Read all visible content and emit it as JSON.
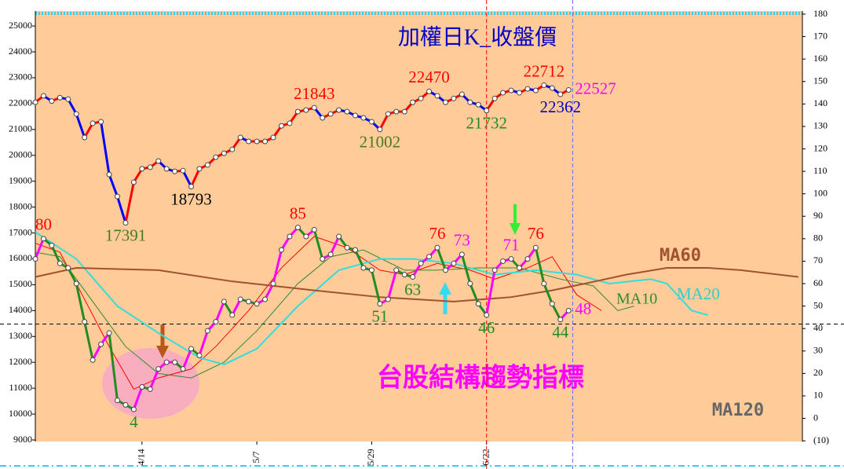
{
  "chart_data": {
    "type": "line",
    "title": "加權日K_收盤價",
    "indicator_title": "台股結構趨勢指標",
    "annotations": [
      {
        "text": "MA120",
        "color": "#666666"
      }
    ],
    "xlim": [
      0,
      93.5
    ],
    "xticks": [
      {
        "value": 13,
        "label": "4/14"
      },
      {
        "value": 27,
        "label": "5/7"
      },
      {
        "value": 41,
        "label": "5/29"
      },
      {
        "value": 55,
        "label": "6/22"
      }
    ],
    "ylim": [
      8940,
      25580
    ],
    "yticks": [
      9000,
      10000,
      11000,
      12000,
      13000,
      14000,
      15000,
      16000,
      17000,
      18000,
      19000,
      20000,
      21000,
      22000,
      23000,
      24000,
      25000
    ],
    "y2lim": [
      -10.3,
      181.4
    ],
    "y2ticks": [
      {
        "value": -10,
        "label": "(10)"
      },
      0,
      10,
      20,
      30,
      40,
      50,
      60,
      70,
      80,
      90,
      100,
      110,
      120,
      130,
      140,
      150,
      160,
      170,
      180
    ],
    "reference_line_y2": 42,
    "vlines": [
      {
        "x": 55,
        "color": "#ff0000"
      },
      {
        "x": 65.5,
        "color": "#6666ff"
      }
    ],
    "background": "#ffcc99",
    "series": [
      {
        "axis": "y",
        "up_color": "#ff0000",
        "down_color": "#0000ff",
        "values": [
          22050,
          22300,
          22100,
          22230,
          22170,
          21600,
          20690,
          21240,
          21300,
          19260,
          18410,
          17391,
          18960,
          19480,
          19540,
          19780,
          19480,
          19380,
          19410,
          18793,
          19480,
          19630,
          19930,
          20080,
          20230,
          20690,
          20540,
          20540,
          20540,
          20690,
          21140,
          21240,
          21690,
          21750,
          21843,
          21450,
          21600,
          21750,
          21690,
          21540,
          21450,
          21300,
          21002,
          21600,
          21690,
          21690,
          22050,
          22200,
          22470,
          22300,
          22050,
          22200,
          22360,
          22050,
          21960,
          21732,
          22200,
          22420,
          22510,
          22420,
          22570,
          22510,
          22712,
          22600,
          22362,
          22527
        ],
        "data_labels": [
          {
            "index": 11,
            "color": "#4a7a20",
            "position": "below"
          },
          {
            "index": 19,
            "color": "#000000",
            "position": "below"
          },
          {
            "index": 34,
            "color": "#ff0000",
            "position": "above"
          },
          {
            "index": 42,
            "color": "#4a7a20",
            "position": "below"
          },
          {
            "index": 48,
            "color": "#ff0000",
            "position": "above"
          },
          {
            "index": 55,
            "color": "#228b22",
            "position": "below"
          },
          {
            "index": 62,
            "color": "#ff0000",
            "position": "above"
          },
          {
            "index": 64,
            "color": "#0000cc",
            "position": "below"
          },
          {
            "index": 65,
            "color": "#ff00ff",
            "position": "right"
          }
        ]
      },
      {
        "axis": "y2",
        "up_color": "#ff00ff",
        "down_color": "#228b22",
        "values": [
          71,
          80,
          77,
          69,
          67,
          60,
          43,
          26,
          33,
          38,
          8,
          6,
          4,
          14,
          13,
          22,
          25,
          25,
          22,
          31,
          28,
          39,
          43,
          52,
          46,
          53,
          52,
          51,
          53,
          60,
          75,
          81,
          85,
          81,
          84,
          71,
          73,
          81,
          76,
          75,
          67,
          66,
          51,
          53,
          66,
          64,
          63,
          69,
          72,
          76,
          66,
          69,
          73,
          60,
          51,
          46,
          66,
          70,
          71,
          67,
          71,
          76,
          60,
          51,
          44,
          48
        ],
        "data_labels": [
          {
            "index": 1,
            "color": "#ff0000",
            "position": "above"
          },
          {
            "index": 12,
            "color": "#228b22",
            "position": "below"
          },
          {
            "index": 32,
            "color": "#ff0000",
            "position": "above"
          },
          {
            "index": 42,
            "color": "#228b22",
            "position": "below"
          },
          {
            "index": 46,
            "color": "#228b22",
            "position": "below"
          },
          {
            "index": 49,
            "color": "#ff0000",
            "position": "above"
          },
          {
            "index": 52,
            "color": "#ff00ff",
            "position": "above"
          },
          {
            "index": 55,
            "color": "#228b22",
            "position": "below"
          },
          {
            "index": 58,
            "color": "#ff00ff",
            "position": "above"
          },
          {
            "index": 61,
            "color": "#ff0000",
            "position": "above"
          },
          {
            "index": 64,
            "color": "#228b22",
            "position": "below"
          },
          {
            "index": 65,
            "color": "#ff00ff",
            "position": "right"
          }
        ]
      },
      {
        "axis": "y2",
        "color": "#ff0000",
        "width": 1,
        "x": [
          0,
          3,
          6,
          9,
          12,
          15,
          19,
          22,
          26,
          30,
          34,
          38,
          42,
          45,
          49,
          53,
          56,
          60,
          63,
          66,
          69
        ],
        "values": [
          78,
          74,
          53,
          32,
          13,
          18,
          22,
          32,
          48,
          67,
          81,
          76,
          66,
          64,
          69,
          66,
          62,
          67,
          72,
          55,
          48
        ]
      },
      {
        "name": "MA10",
        "axis": "y2",
        "color": "#2e8b2e",
        "width": 1,
        "x": [
          0,
          3,
          7,
          11,
          15,
          19,
          23,
          27,
          32,
          36,
          40,
          45,
          49,
          54,
          59,
          64,
          68,
          71,
          73
        ],
        "values": [
          74,
          72,
          52,
          32,
          20,
          18,
          25,
          39,
          60,
          72,
          75,
          66,
          66,
          67,
          67,
          62,
          59,
          48,
          50
        ]
      },
      {
        "name": "MA20",
        "axis": "y2",
        "color": "#33dddd",
        "width": 2,
        "x": [
          0,
          5,
          10,
          15,
          20,
          23,
          27,
          32,
          37,
          42,
          46,
          51,
          56,
          61,
          66,
          70,
          75,
          77,
          80,
          82
        ],
        "values": [
          83,
          71,
          50,
          38,
          27,
          24,
          31,
          50,
          66,
          71,
          71,
          69,
          64,
          66,
          64,
          60,
          62,
          60,
          48,
          46
        ]
      },
      {
        "name": "MA60",
        "axis": "y2",
        "color": "#a0522d",
        "width": 2,
        "x": [
          0,
          5,
          15,
          24,
          34,
          42,
          51,
          58,
          63,
          67,
          72,
          77,
          82,
          86,
          93
        ],
        "values": [
          63,
          67,
          66,
          61,
          57,
          54,
          52,
          54,
          57,
          60,
          64,
          67,
          67,
          66,
          63
        ]
      }
    ]
  }
}
